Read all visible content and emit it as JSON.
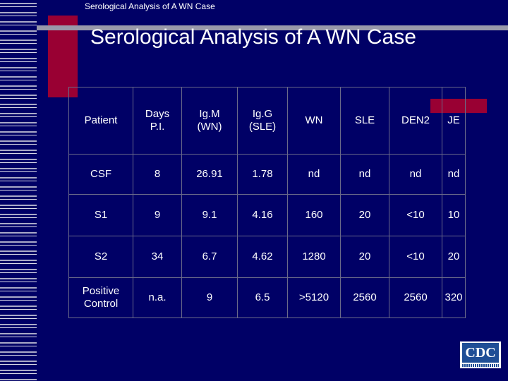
{
  "header": {
    "small_title": "Serological Analysis of A WN Case"
  },
  "slide": {
    "title": "Serological Analysis of A WN Case"
  },
  "table": {
    "headers": [
      [
        "Patient"
      ],
      [
        "Days",
        "P.I."
      ],
      [
        "Ig.M",
        "(WN)"
      ],
      [
        "Ig.G",
        "(SLE)"
      ],
      [
        "WN"
      ],
      [
        "SLE"
      ],
      [
        "DEN2"
      ],
      [
        "JE"
      ]
    ],
    "rows": [
      [
        [
          "CSF"
        ],
        [
          "8"
        ],
        [
          "26.91"
        ],
        [
          "1.78"
        ],
        [
          "nd"
        ],
        [
          "nd"
        ],
        [
          "nd"
        ],
        [
          "nd"
        ]
      ],
      [
        [
          "S1"
        ],
        [
          "9"
        ],
        [
          "9.1"
        ],
        [
          "4.16"
        ],
        [
          "160"
        ],
        [
          "20"
        ],
        [
          "<10"
        ],
        [
          "10"
        ]
      ],
      [
        [
          "S2"
        ],
        [
          "34"
        ],
        [
          "6.7"
        ],
        [
          "4.62"
        ],
        [
          "1280"
        ],
        [
          "20"
        ],
        [
          "<10"
        ],
        [
          "20"
        ]
      ],
      [
        [
          "Positive",
          "Control"
        ],
        [
          "n.a."
        ],
        [
          "9"
        ],
        [
          "6.5"
        ],
        [
          ">5120"
        ],
        [
          "2560"
        ],
        [
          "2560"
        ],
        [
          "320"
        ]
      ]
    ]
  },
  "logo": {
    "text": "CDC"
  },
  "colors": {
    "background": "#000066",
    "accent_red": "#990033",
    "accent_gray": "#9999aa",
    "text": "#ffffff"
  }
}
